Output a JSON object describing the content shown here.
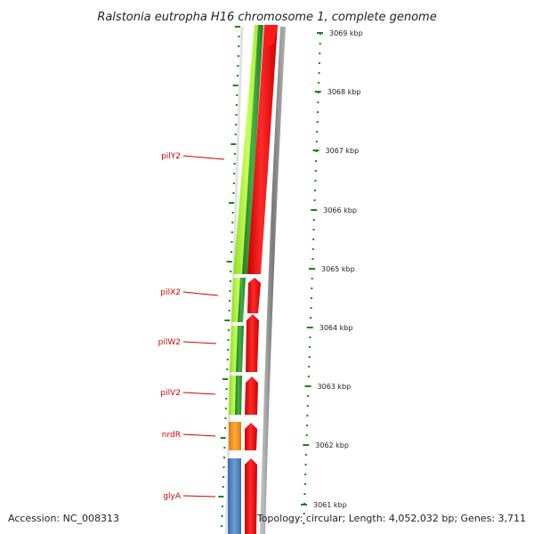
{
  "title": "Ralstonia eutropha H16 chromosome 1, complete genome",
  "footer": {
    "accession": "Accession: NC_008313",
    "summary": "Topology: circular; Length: 4,052,032 bp; Genes: 3,711"
  },
  "scale": {
    "unit": "kbp",
    "labels": [
      "3069 kbp",
      "3068 kbp",
      "3067 kbp",
      "3066 kbp",
      "3065 kbp",
      "3064 kbp",
      "3063 kbp",
      "3062 kbp",
      "3061 kbp"
    ]
  },
  "genes": [
    {
      "name": "pilY2"
    },
    {
      "name": "pilX2"
    },
    {
      "name": "pilW2"
    },
    {
      "name": "pilV2"
    },
    {
      "name": "nrdR"
    },
    {
      "name": "glyA"
    }
  ],
  "colors": {
    "gene_label": "#d40000",
    "tick": "#118811",
    "cds_forward": "#ff0000",
    "lime": "#aef23a",
    "green": "#2f9a2f",
    "orange": "#f28c1c",
    "blue": "#4a7fb8",
    "backbone": "#888888"
  }
}
